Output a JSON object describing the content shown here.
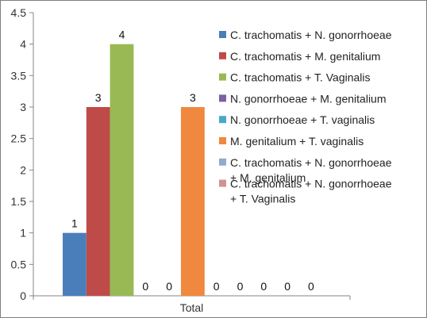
{
  "chart_data": {
    "type": "bar",
    "title": "",
    "xlabel": "",
    "ylabel": "",
    "categories": [
      "Total"
    ],
    "ylim": [
      0,
      4.5
    ],
    "yticks": [
      "0",
      "0.5",
      "1",
      "1.5",
      "2",
      "2.5",
      "3",
      "3.5",
      "4",
      "4.5"
    ],
    "grid": false,
    "legend_position": "right",
    "series": [
      {
        "name": "C. trachomatis + N. gonorrhoeae",
        "values": [
          1
        ],
        "color": "#4a7ebb",
        "data_label": "1"
      },
      {
        "name": "C. trachomatis + M. genitalium",
        "values": [
          3
        ],
        "color": "#be4b48",
        "data_label": "3"
      },
      {
        "name": "C. trachomatis + T. Vaginalis",
        "values": [
          4
        ],
        "color": "#98b954",
        "data_label": "4"
      },
      {
        "name": "N. gonorrhoeae + M. genitalium",
        "values": [
          0
        ],
        "color": "#7d60a0",
        "data_label": "0"
      },
      {
        "name": "N. gonorrhoeae + T. vaginalis",
        "values": [
          0
        ],
        "color": "#46aac5",
        "data_label": "0"
      },
      {
        "name": "M. genitalium + T. vaginalis",
        "values": [
          3
        ],
        "color": "#f0883f",
        "data_label": "3"
      },
      {
        "name": "C. trachomatis + N. gonorrhoeae\n+ M. genitalium",
        "values": [
          0
        ],
        "color": "#93a9cf",
        "data_label": "0"
      },
      {
        "name": "C. trachomatis + N. gonorrhoeae\n+ T. Vaginalis",
        "values": [
          0
        ],
        "color": "#d19392",
        "data_label": "0"
      },
      {
        "name": "",
        "values": [
          0
        ],
        "color": "#b9cd96",
        "data_label": "0"
      },
      {
        "name": "",
        "values": [
          0
        ],
        "color": "#a99bbd",
        "data_label": "0"
      },
      {
        "name": "",
        "values": [
          0
        ],
        "color": "#91c3d5",
        "data_label": "0"
      }
    ]
  }
}
